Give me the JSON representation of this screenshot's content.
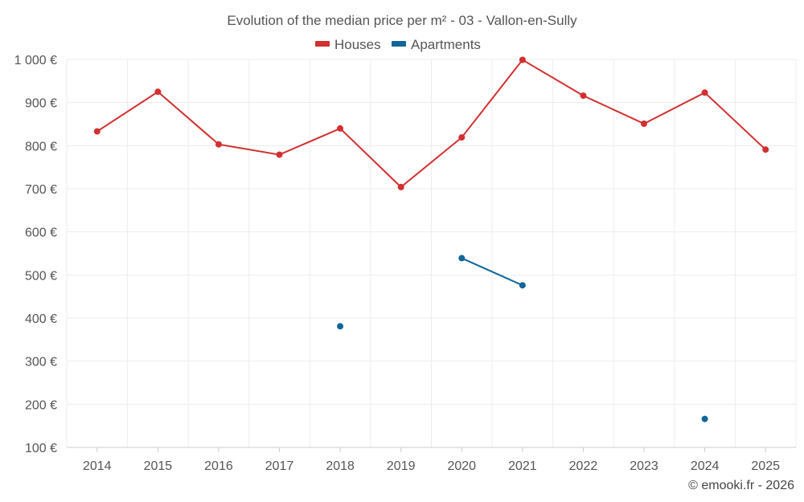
{
  "chart_data": {
    "type": "line",
    "title": "Evolution of the median price per m² - 03 - Vallon-en-Sully",
    "categories": [
      "2014",
      "2015",
      "2016",
      "2017",
      "2018",
      "2019",
      "2020",
      "2021",
      "2022",
      "2023",
      "2024",
      "2025"
    ],
    "ylim": [
      100,
      1000
    ],
    "yticks": [
      100,
      200,
      300,
      400,
      500,
      600,
      700,
      800,
      900,
      1000
    ],
    "ytick_labels": [
      "100 €",
      "200 €",
      "300 €",
      "400 €",
      "500 €",
      "600 €",
      "700 €",
      "800 €",
      "900 €",
      "1 000 €"
    ],
    "grid": true,
    "legend_position": "top-center",
    "series": [
      {
        "name": "Houses",
        "color": "#d32f2f",
        "values": [
          833,
          925,
          803,
          779,
          840,
          704,
          819,
          999,
          916,
          851,
          923,
          791
        ]
      },
      {
        "name": "Apartments",
        "color": "#0f6699",
        "values": [
          null,
          null,
          null,
          null,
          381,
          null,
          539,
          476,
          null,
          null,
          166,
          null
        ]
      }
    ],
    "credit": "© emooki.fr - 2026"
  }
}
